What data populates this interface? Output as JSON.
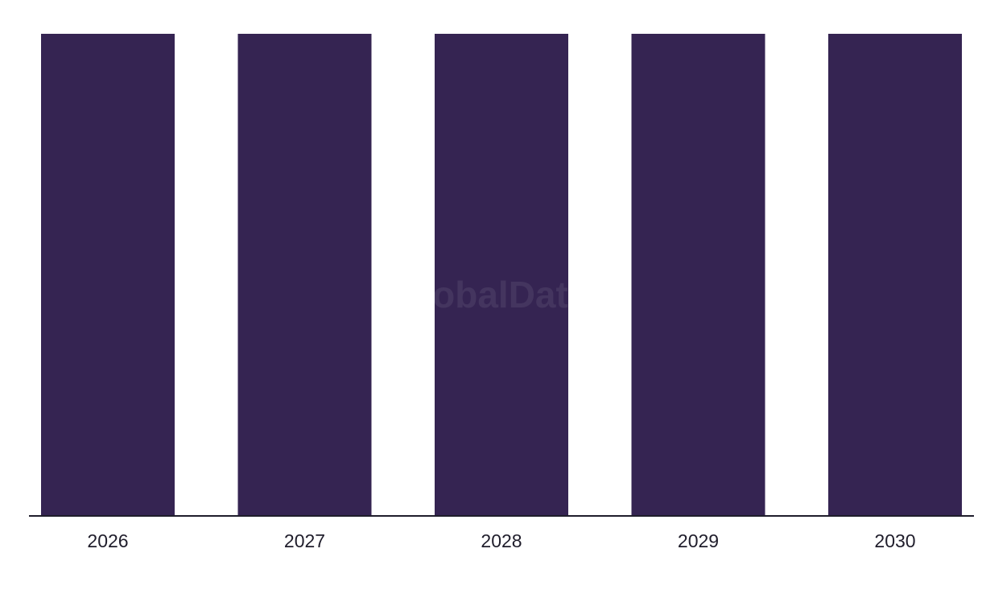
{
  "chart_data": {
    "type": "bar",
    "categories": [
      "2026",
      "2027",
      "2028",
      "2029",
      "2030"
    ],
    "values": [
      1,
      1,
      1,
      1,
      1
    ],
    "color": "#352452",
    "ylim": [
      0,
      1
    ],
    "watermark": "GlobalData"
  }
}
